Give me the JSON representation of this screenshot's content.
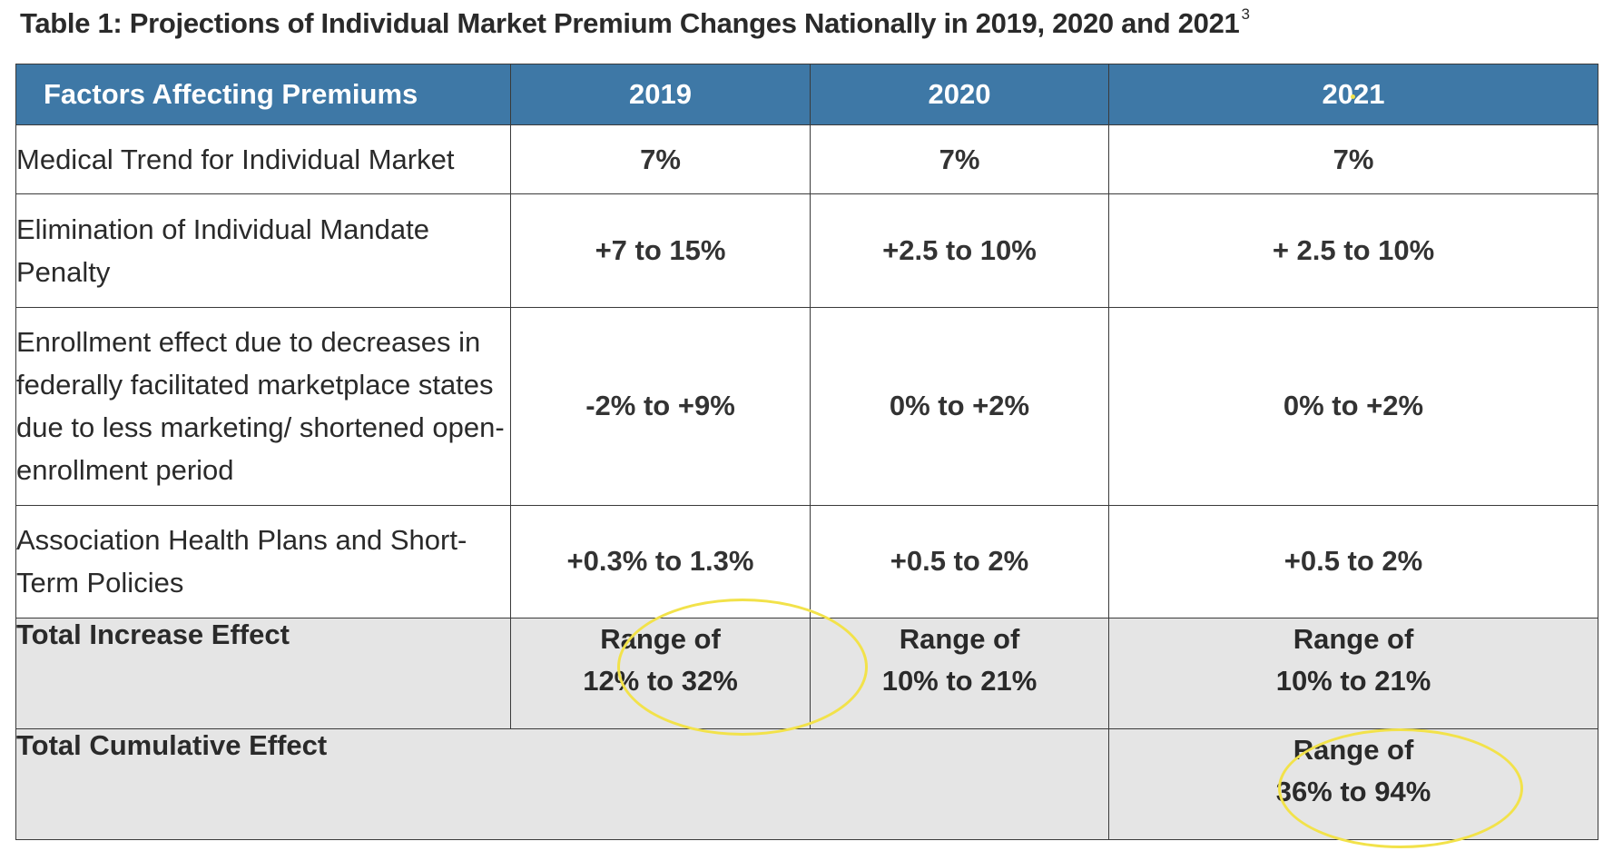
{
  "title": {
    "text": "Table 1: Projections of Individual Market Premium Changes Nationally in 2019, 2020 and 2021",
    "footnote": "3"
  },
  "table": {
    "headers": [
      "Factors Affecting Premiums",
      "2019",
      "2020",
      "2021"
    ],
    "rows": [
      {
        "factor": "Medical Trend for Individual Market",
        "values": [
          "7%",
          "7%",
          "7%"
        ]
      },
      {
        "factor": "Elimination of Individual Mandate Penalty",
        "values": [
          "+7 to 15%",
          "+2.5 to 10%",
          "+ 2.5 to 10%"
        ]
      },
      {
        "factor": "Enrollment effect due to decreases in federally facilitated marketplace states due to less marketing/ shortened open-enrollment period",
        "values": [
          "-2% to +9%",
          "0% to +2%",
          "0% to +2%"
        ]
      },
      {
        "factor": "Association Health Plans and Short-Term Policies",
        "values": [
          "+0.3% to 1.3%",
          "+0.5 to 2%",
          "+0.5 to 2%"
        ]
      }
    ],
    "total_increase": {
      "label": "Total Increase Effect",
      "values": [
        {
          "line1": "Range of",
          "line2": "12% to 32%"
        },
        {
          "line1": "Range of",
          "line2": "10% to 21%"
        },
        {
          "line1": "Range of",
          "line2": "10% to 21%"
        }
      ]
    },
    "total_cumulative": {
      "label": "Total Cumulative Effect",
      "value": {
        "line1": "Range of",
        "line2": "36% to 94%"
      }
    }
  },
  "colors": {
    "header_bg": "#3e78a6",
    "total_bg": "#e5e5e5",
    "highlight_circle": "#f2e24a"
  }
}
